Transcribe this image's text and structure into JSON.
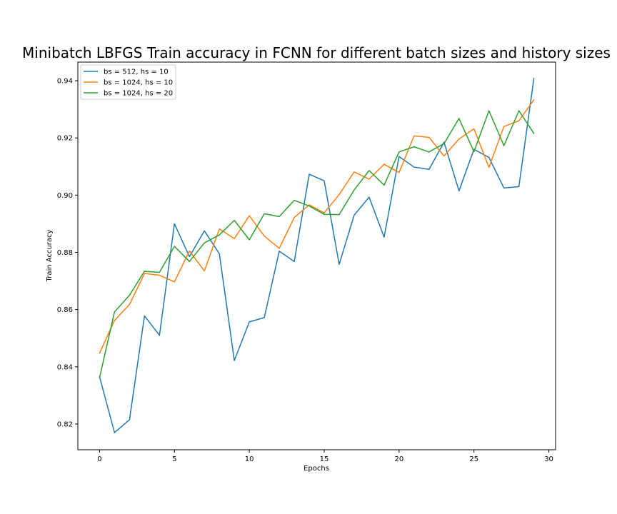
{
  "chart_data": {
    "type": "line",
    "title": "Minibatch LBFGS Train accuracy in FCNN for different batch sizes and history sizes",
    "xlabel": "Epochs",
    "ylabel": "Train Accuracy",
    "xlim": [
      -1.45,
      30.45
    ],
    "ylim": [
      0.811,
      0.9465
    ],
    "xticks": [
      0,
      5,
      10,
      15,
      20,
      25,
      30
    ],
    "yticks": [
      0.82,
      0.84,
      0.86,
      0.88,
      0.9,
      0.92,
      0.94
    ],
    "xtick_labels": [
      "0",
      "5",
      "10",
      "15",
      "20",
      "25",
      "30"
    ],
    "ytick_labels": [
      "0.82",
      "0.84",
      "0.86",
      "0.88",
      "0.90",
      "0.92",
      "0.94"
    ],
    "grid": false,
    "legend_position": "top-left",
    "x": [
      0,
      1,
      2,
      3,
      4,
      5,
      6,
      7,
      8,
      9,
      10,
      11,
      12,
      13,
      14,
      15,
      16,
      17,
      18,
      19,
      20,
      21,
      22,
      23,
      24,
      25,
      26,
      27,
      28,
      29
    ],
    "series": [
      {
        "name": "bs = 512, hs = 10",
        "color": "#1f77b4",
        "values": [
          0.8365,
          0.817,
          0.8215,
          0.8578,
          0.851,
          0.89,
          0.8785,
          0.8875,
          0.8795,
          0.8422,
          0.8557,
          0.8572,
          0.8804,
          0.8768,
          0.9073,
          0.905,
          0.8758,
          0.893,
          0.8993,
          0.8853,
          0.9135,
          0.9098,
          0.909,
          0.9185,
          0.9015,
          0.916,
          0.9132,
          0.9025,
          0.903,
          0.9408
        ]
      },
      {
        "name": "bs = 1024, hs = 10",
        "color": "#ff7f0e",
        "values": [
          0.8448,
          0.8562,
          0.8618,
          0.8726,
          0.872,
          0.8697,
          0.8805,
          0.8735,
          0.8882,
          0.8848,
          0.8928,
          0.8857,
          0.8814,
          0.8922,
          0.8966,
          0.8938,
          0.9002,
          0.9081,
          0.9056,
          0.9108,
          0.9079,
          0.9207,
          0.9202,
          0.9137,
          0.9196,
          0.9232,
          0.9097,
          0.924,
          0.926,
          0.9333
        ]
      },
      {
        "name": "bs = 1024, hs = 20",
        "color": "#2ca02c",
        "values": [
          0.8362,
          0.8592,
          0.865,
          0.8734,
          0.873,
          0.8821,
          0.8768,
          0.8833,
          0.8861,
          0.8912,
          0.8844,
          0.8935,
          0.8925,
          0.8982,
          0.8962,
          0.8933,
          0.8932,
          0.9018,
          0.9086,
          0.9035,
          0.9151,
          0.9169,
          0.9151,
          0.918,
          0.9268,
          0.9152,
          0.9295,
          0.9173,
          0.9295,
          0.9216
        ]
      }
    ]
  }
}
